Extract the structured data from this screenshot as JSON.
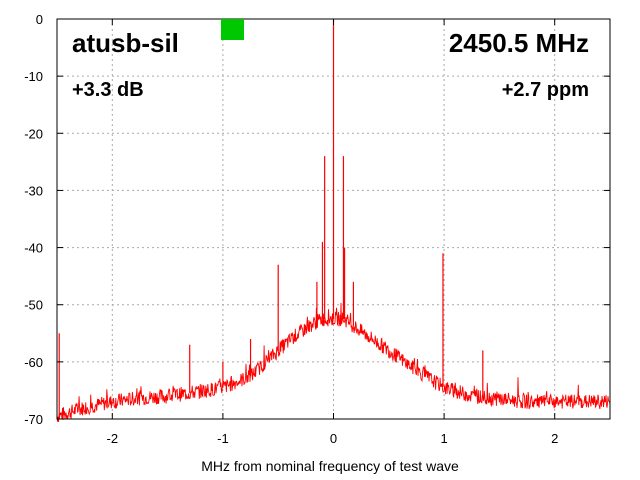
{
  "chart_data": {
    "type": "line",
    "title": "",
    "xlabel": "MHz from nominal frequency of test wave",
    "ylabel": "",
    "xlim": [
      -2.5,
      2.5
    ],
    "ylim": [
      -70,
      0
    ],
    "x_ticks": [
      -2,
      -1,
      0,
      1,
      2
    ],
    "y_ticks": [
      0,
      -10,
      -20,
      -30,
      -40,
      -50,
      -60,
      -70
    ],
    "grid": true,
    "series": [
      {
        "color": "#ff0000",
        "x": [
          -2.5,
          -2.25,
          -2.0,
          -1.75,
          -1.5,
          -1.25,
          -1.0,
          -0.75,
          -0.5,
          -0.35,
          -0.2,
          -0.1,
          0.0,
          0.1,
          0.2,
          0.35,
          0.5,
          0.75,
          1.0,
          1.25,
          1.5,
          1.75,
          2.0,
          2.25,
          2.5
        ],
        "y": [
          -69.5,
          -68,
          -67,
          -66.3,
          -66,
          -65.3,
          -64.5,
          -62.5,
          -58,
          -55.5,
          -53.5,
          -52.5,
          -52.5,
          -52.5,
          -54,
          -56,
          -58,
          -61.5,
          -64.5,
          -66,
          -66.5,
          -67,
          -67,
          -67,
          -67
        ],
        "spurs": [
          {
            "x": 0.0,
            "y": 0
          },
          {
            "x": -0.08,
            "y": -24
          },
          {
            "x": 0.09,
            "y": -24
          },
          {
            "x": -0.1,
            "y": -39
          },
          {
            "x": 0.1,
            "y": -40
          },
          {
            "x": -0.5,
            "y": -43
          },
          {
            "x": 0.99,
            "y": -41
          },
          {
            "x": -0.15,
            "y": -46
          },
          {
            "x": 0.18,
            "y": -46
          },
          {
            "x": -2.48,
            "y": -55
          },
          {
            "x": -1.3,
            "y": -57
          },
          {
            "x": -0.75,
            "y": -56
          },
          {
            "x": 1.35,
            "y": -58
          },
          {
            "x": -1.0,
            "y": -60
          },
          {
            "x": 2.45,
            "y": -66
          }
        ]
      }
    ]
  },
  "labels": {
    "device": "atusb-sil",
    "frequency": "2450.5 MHz",
    "gain": "+3.3 dB",
    "offset": "+2.7 ppm"
  },
  "colors": {
    "trace": "#ff0000",
    "indicator": "#00c800",
    "grid": "#aaaaaa"
  }
}
